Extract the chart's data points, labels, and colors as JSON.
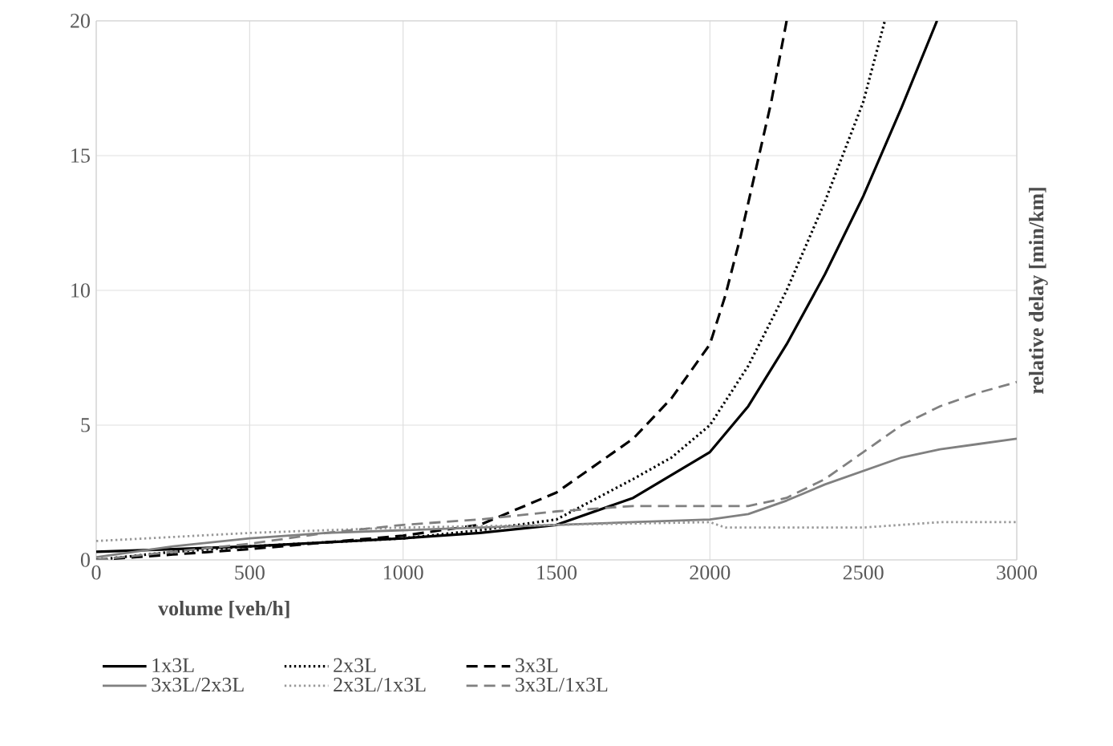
{
  "chart_data": {
    "type": "line",
    "xlabel": "volume [veh/h]",
    "ylabel": "relative delay [min/km]",
    "xlim": [
      0,
      3000
    ],
    "xticks": [
      0,
      500,
      1000,
      1500,
      2000,
      2500,
      3000
    ],
    "ylim": [
      0,
      20
    ],
    "yticks": [
      0,
      5,
      10,
      15,
      20
    ],
    "grid": true,
    "legend": "bottom",
    "marker": "none",
    "series": [
      {
        "name": "1x3L",
        "color": "#000000",
        "line_style": "solid",
        "x": [
          0,
          250,
          500,
          750,
          1000,
          1250,
          1500,
          1750,
          2000,
          2125,
          2250,
          2375,
          2500,
          2625,
          2740
        ],
        "values": [
          0.3,
          0.4,
          0.5,
          0.65,
          0.8,
          1.0,
          1.3,
          2.3,
          4.0,
          5.7,
          8.0,
          10.6,
          13.5,
          16.8,
          20
        ]
      },
      {
        "name": "2x3L",
        "color": "#000000",
        "line_style": "dotted",
        "x": [
          0,
          250,
          500,
          750,
          1000,
          1250,
          1500,
          1750,
          1875,
          2000,
          2125,
          2250,
          2375,
          2500,
          2570
        ],
        "values": [
          0.0,
          0.3,
          0.5,
          0.65,
          0.8,
          1.1,
          1.5,
          3.0,
          3.8,
          5.0,
          7.2,
          10.0,
          13.3,
          17.0,
          20
        ]
      },
      {
        "name": "3x3L",
        "color": "#000000",
        "line_style": "dashed",
        "x": [
          0,
          250,
          500,
          750,
          1000,
          1250,
          1500,
          1750,
          1875,
          2000,
          2050,
          2100,
          2150,
          2200,
          2250
        ],
        "values": [
          0.0,
          0.2,
          0.4,
          0.65,
          0.9,
          1.3,
          2.5,
          4.5,
          6.0,
          8.0,
          9.8,
          12.0,
          14.5,
          17.0,
          20
        ]
      },
      {
        "name": "3x3L/2x3L",
        "color": "#808080",
        "line_style": "solid",
        "x": [
          0,
          250,
          500,
          750,
          1000,
          1250,
          1500,
          1750,
          2000,
          2125,
          2250,
          2375,
          2500,
          2625,
          2750,
          2875,
          3000
        ],
        "values": [
          0.1,
          0.5,
          0.8,
          1.0,
          1.1,
          1.2,
          1.3,
          1.4,
          1.5,
          1.7,
          2.2,
          2.8,
          3.3,
          3.8,
          4.1,
          4.3,
          4.5
        ]
      },
      {
        "name": "2x3L/1x3L",
        "color": "#999999",
        "line_style": "dotted",
        "x": [
          0,
          250,
          500,
          750,
          1000,
          1250,
          1500,
          1750,
          2000,
          2050,
          2250,
          2500,
          2750,
          3000
        ],
        "values": [
          0.7,
          0.85,
          1.0,
          1.1,
          1.2,
          1.25,
          1.3,
          1.35,
          1.4,
          1.2,
          1.2,
          1.2,
          1.4,
          1.4
        ]
      },
      {
        "name": "3x3L/1x3L",
        "color": "#808080",
        "line_style": "dashed",
        "x": [
          0,
          250,
          500,
          750,
          1000,
          1250,
          1500,
          1750,
          2000,
          2125,
          2250,
          2375,
          2500,
          2625,
          2750,
          2875,
          3000
        ],
        "values": [
          0.0,
          0.3,
          0.6,
          1.0,
          1.3,
          1.5,
          1.8,
          2.0,
          2.0,
          2.0,
          2.3,
          3.0,
          4.0,
          5.0,
          5.7,
          6.2,
          6.6
        ]
      }
    ]
  }
}
